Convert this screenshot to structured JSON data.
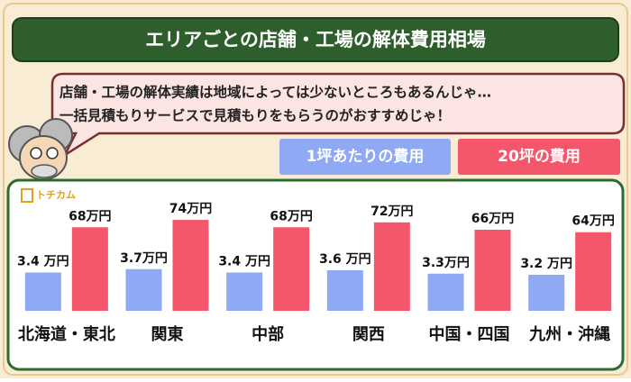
{
  "chart_data": {
    "type": "bar",
    "title": "エリアごとの店舗・工場の解体費用相場",
    "bubble_text": [
      "店舗・工場の解体実績は地域によっては少ないところもあるんじゃ…",
      "一括見積もりサービスで見積もりをもらうのがおすすめじゃ！"
    ],
    "logo": "トチカム",
    "categories": [
      "北海道・東北",
      "関東",
      "中部",
      "関西",
      "中国・四国",
      "九州・沖縄"
    ],
    "series": [
      {
        "name": "1坪あたりの費用",
        "color": "#8fa9f4",
        "values": [
          3.4,
          3.7,
          3.4,
          3.6,
          3.3,
          3.2
        ],
        "value_labels": [
          "3.4 万円",
          "3.7万円",
          "3.4 万円",
          "3.6 万円",
          "3.3万円",
          "3.2 万円"
        ]
      },
      {
        "name": "20坪の費用",
        "color": "#f4566b",
        "axis": "y2",
        "values": [
          68,
          74,
          68,
          72,
          66,
          64
        ],
        "value_labels": [
          "68万円",
          "74万円",
          "68万円",
          "72万円",
          "66万円",
          "64万円"
        ]
      }
    ],
    "ylim": [
      0,
      12
    ],
    "y2lim": [
      0,
      110
    ]
  }
}
